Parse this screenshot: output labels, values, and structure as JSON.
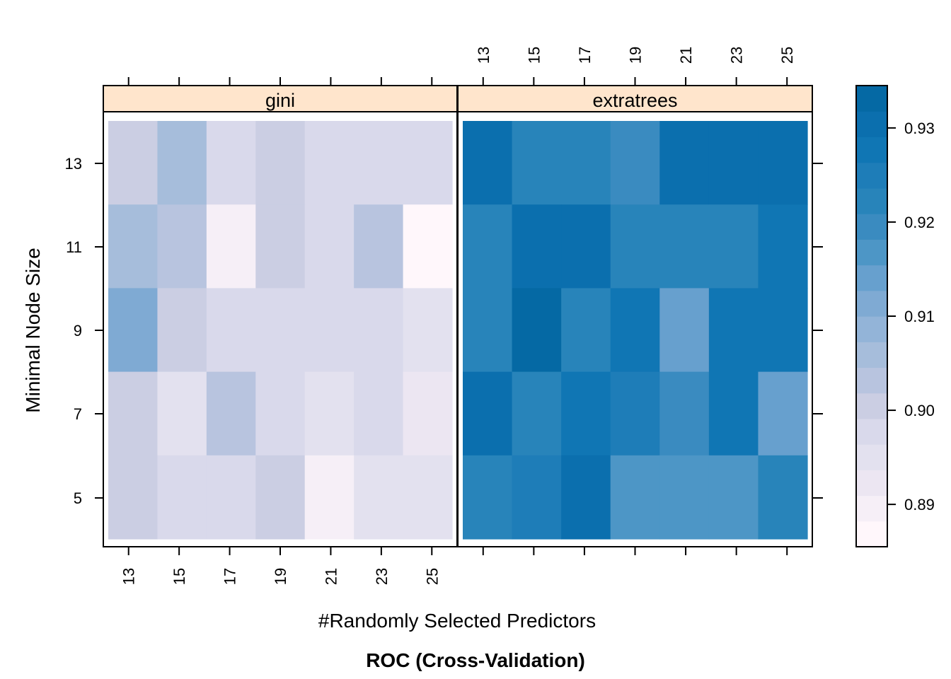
{
  "chart_data": {
    "type": "heatmap",
    "title": "ROC (Cross-Validation)",
    "xlabel": "#Randomly Selected Predictors",
    "ylabel": "Minimal Node Size",
    "x": [
      13,
      15,
      17,
      19,
      21,
      23,
      25
    ],
    "y": [
      5,
      7,
      9,
      11,
      13
    ],
    "x_tick_labels": [
      "13",
      "15",
      "17",
      "19",
      "21",
      "23",
      "25"
    ],
    "y_tick_labels": [
      "5",
      "7",
      "9",
      "11",
      "13"
    ],
    "colorbar": {
      "min": 0.8855,
      "max": 0.9345,
      "ticks": [
        0.89,
        0.9,
        0.91,
        0.92,
        0.93
      ],
      "tick_labels": [
        "0.89",
        "0.90",
        "0.91",
        "0.92",
        "0.93"
      ],
      "colors": [
        "#FFF7FB",
        "#F6EFF7",
        "#ECE6F2",
        "#E3E1EF",
        "#D9D9EB",
        "#CBCEE3",
        "#B8C4DF",
        "#A6BDDB",
        "#93B4D8",
        "#7FAAD3",
        "#67A0CE",
        "#4D96C6",
        "#3A8BC0",
        "#2884BA",
        "#1E7DB8",
        "#1076B4",
        "#0B6FAE",
        "#0569A4"
      ]
    },
    "panels": [
      {
        "name": "gini",
        "z": [
          [
            0.9003,
            0.9047,
            0.8968,
            0.901,
            0.8987,
            0.8987,
            0.8987
          ],
          [
            0.907,
            0.904,
            0.8907,
            0.9013,
            0.8983,
            0.9045,
            0.886
          ],
          [
            0.9117,
            0.9005,
            0.8983,
            0.8983,
            0.8983,
            0.8983,
            0.8955
          ],
          [
            0.8995,
            0.8947,
            0.9035,
            0.899,
            0.8945,
            0.898,
            0.891
          ],
          [
            0.9003,
            0.897,
            0.897,
            0.901,
            0.89,
            0.896,
            0.896
          ]
        ]
      },
      {
        "name": "extratrees",
        "z": [
          [
            0.9305,
            0.9225,
            0.9225,
            0.919,
            0.9305,
            0.9305,
            0.9305
          ],
          [
            0.9225,
            0.9305,
            0.9305,
            0.9225,
            0.921,
            0.9225,
            0.9265
          ],
          [
            0.9235,
            0.9345,
            0.9235,
            0.9265,
            0.9145,
            0.9285,
            0.9285
          ],
          [
            0.9305,
            0.9235,
            0.9265,
            0.9245,
            0.9205,
            0.9265,
            0.914
          ],
          [
            0.9235,
            0.9255,
            0.9305,
            0.917,
            0.917,
            0.917,
            0.9235
          ]
        ]
      }
    ]
  }
}
